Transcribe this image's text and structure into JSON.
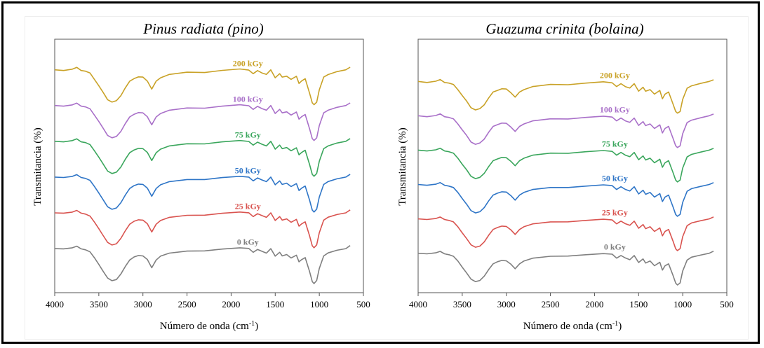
{
  "panels": [
    {
      "title": "Pinus radiata (pino)",
      "ylabel": "Transmitancia (%)",
      "xlabel": "Número de onda (cm",
      "xlabel_sup": "-1",
      "xlabel_close": ")"
    },
    {
      "title": "Guazuma crinita (bolaina)",
      "ylabel": "Transmitancia (%)",
      "xlabel": "Número de onda (cm",
      "xlabel_sup": "-1",
      "xlabel_close": ")"
    }
  ],
  "chart_data": [
    {
      "type": "line",
      "title": "Pinus radiata (pino)",
      "xlabel": "Número de onda (cm-1)",
      "ylabel": "Transmitancia (%)",
      "xlim": [
        4000,
        500
      ],
      "xticks": [
        4000,
        3500,
        3000,
        2500,
        2000,
        1500,
        1000,
        500
      ],
      "y_ticks_shown": false,
      "series": [
        {
          "name": "0 kGy",
          "color": "#7f7f7f",
          "offset": 0
        },
        {
          "name": "25 kGy",
          "color": "#d9534f",
          "offset": 1
        },
        {
          "name": "50 kGy",
          "color": "#2e75c7",
          "offset": 2
        },
        {
          "name": "75 kGy",
          "color": "#3aa65c",
          "offset": 3
        },
        {
          "name": "100 kGy",
          "color": "#a970c9",
          "offset": 4
        },
        {
          "name": "200 kGy",
          "color": "#c9a227",
          "offset": 5
        }
      ],
      "spectrum": {
        "x": [
          4000,
          3900,
          3800,
          3750,
          3700,
          3650,
          3600,
          3550,
          3500,
          3450,
          3400,
          3350,
          3300,
          3250,
          3200,
          3150,
          3100,
          3050,
          3000,
          2950,
          2900,
          2850,
          2800,
          2700,
          2500,
          2300,
          2100,
          1900,
          1800,
          1750,
          1700,
          1650,
          1600,
          1550,
          1500,
          1450,
          1420,
          1370,
          1320,
          1260,
          1230,
          1200,
          1160,
          1110,
          1080,
          1060,
          1030,
          1000,
          950,
          900,
          800,
          700,
          650
        ],
        "y": [
          0.88,
          0.9,
          0.91,
          0.94,
          0.9,
          0.86,
          0.8,
          0.68,
          0.5,
          0.32,
          0.18,
          0.1,
          0.12,
          0.28,
          0.45,
          0.6,
          0.7,
          0.72,
          0.7,
          0.64,
          0.42,
          0.6,
          0.72,
          0.78,
          0.82,
          0.85,
          0.88,
          0.9,
          0.91,
          0.8,
          0.86,
          0.84,
          0.78,
          0.88,
          0.72,
          0.8,
          0.7,
          0.76,
          0.66,
          0.72,
          0.58,
          0.62,
          0.66,
          0.34,
          0.08,
          0.02,
          0.12,
          0.4,
          0.7,
          0.8,
          0.85,
          0.88,
          0.98
        ]
      }
    },
    {
      "type": "line",
      "title": "Guazuma crinita (bolaina)",
      "xlabel": "Número de onda (cm-1)",
      "ylabel": "Transmitancia (%)",
      "xlim": [
        4000,
        500
      ],
      "xticks": [
        4000,
        3500,
        3000,
        2500,
        2000,
        1500,
        1000,
        500
      ],
      "y_ticks_shown": false,
      "series": [
        {
          "name": "0 kGy",
          "color": "#7f7f7f",
          "offset": 0
        },
        {
          "name": "25 kGy",
          "color": "#d9534f",
          "offset": 1
        },
        {
          "name": "50 kGy",
          "color": "#2e75c7",
          "offset": 2
        },
        {
          "name": "75 kGy",
          "color": "#3aa65c",
          "offset": 3
        },
        {
          "name": "100 kGy",
          "color": "#a970c9",
          "offset": 4
        },
        {
          "name": "200 kGy",
          "color": "#c9a227",
          "offset": 5
        }
      ],
      "spectrum": {
        "x": [
          4000,
          3900,
          3800,
          3750,
          3700,
          3650,
          3600,
          3550,
          3500,
          3450,
          3400,
          3350,
          3300,
          3250,
          3200,
          3150,
          3100,
          3050,
          3000,
          2950,
          2900,
          2850,
          2800,
          2700,
          2500,
          2300,
          2100,
          1900,
          1800,
          1750,
          1700,
          1650,
          1600,
          1550,
          1500,
          1450,
          1420,
          1370,
          1320,
          1260,
          1230,
          1200,
          1160,
          1110,
          1080,
          1060,
          1030,
          1000,
          950,
          900,
          800,
          700,
          650
        ],
        "y": [
          0.88,
          0.89,
          0.9,
          0.93,
          0.89,
          0.85,
          0.8,
          0.7,
          0.52,
          0.36,
          0.22,
          0.14,
          0.16,
          0.3,
          0.46,
          0.6,
          0.68,
          0.7,
          0.68,
          0.62,
          0.48,
          0.6,
          0.7,
          0.76,
          0.8,
          0.83,
          0.85,
          0.87,
          0.88,
          0.76,
          0.82,
          0.78,
          0.72,
          0.82,
          0.66,
          0.74,
          0.62,
          0.7,
          0.56,
          0.64,
          0.46,
          0.56,
          0.6,
          0.32,
          0.1,
          0.04,
          0.12,
          0.42,
          0.7,
          0.8,
          0.84,
          0.88,
          0.96
        ]
      }
    }
  ]
}
